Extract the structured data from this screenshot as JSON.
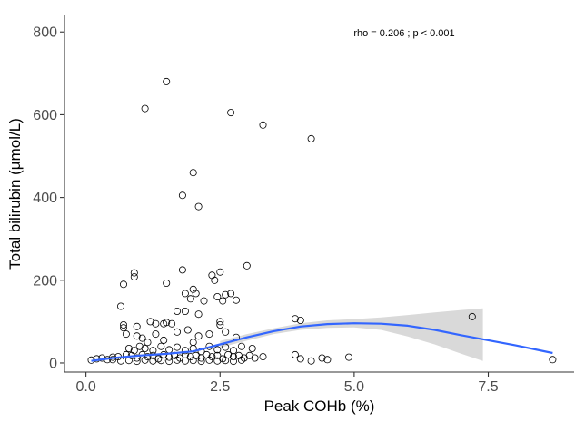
{
  "chart_data": {
    "type": "scatter",
    "xlabel": "Peak COHb (%)",
    "ylabel": "Total bilirubin (µmol/L)",
    "annotation": "rho = 0.206 ; p < 0.001",
    "xlim": [
      -0.4,
      9.1
    ],
    "ylim": [
      -22,
      840
    ],
    "x_ticks": [
      0,
      2.5,
      5,
      7.5
    ],
    "x_tick_labels": [
      "0.0",
      "2.5",
      "5.0",
      "7.5"
    ],
    "y_ticks": [
      0,
      200,
      400,
      600,
      800
    ],
    "y_tick_labels": [
      "0",
      "200",
      "400",
      "600",
      "800"
    ],
    "grid": false,
    "legend": "none",
    "point_style": "open-circle",
    "smooth_color": "#3366FF",
    "ribbon_color": "#d9d9d9",
    "points": [
      [
        1.5,
        680
      ],
      [
        1.1,
        615
      ],
      [
        2.7,
        605
      ],
      [
        3.3,
        575
      ],
      [
        4.2,
        542
      ],
      [
        2.0,
        460
      ],
      [
        1.8,
        405
      ],
      [
        2.1,
        378
      ],
      [
        3.0,
        235
      ],
      [
        0.9,
        218
      ],
      [
        0.9,
        208
      ],
      [
        1.8,
        225
      ],
      [
        2.5,
        220
      ],
      [
        2.35,
        212
      ],
      [
        2.4,
        200
      ],
      [
        0.7,
        190
      ],
      [
        1.5,
        193
      ],
      [
        2.6,
        165
      ],
      [
        2.7,
        168
      ],
      [
        2.45,
        160
      ],
      [
        2.2,
        150
      ],
      [
        2.55,
        150
      ],
      [
        2.8,
        152
      ],
      [
        2.0,
        178
      ],
      [
        1.85,
        168
      ],
      [
        2.05,
        168
      ],
      [
        1.95,
        155
      ],
      [
        0.65,
        137
      ],
      [
        1.7,
        125
      ],
      [
        1.85,
        125
      ],
      [
        2.1,
        118
      ],
      [
        0.7,
        92
      ],
      [
        0.7,
        85
      ],
      [
        0.95,
        88
      ],
      [
        1.2,
        100
      ],
      [
        1.3,
        95
      ],
      [
        1.45,
        95
      ],
      [
        1.6,
        95
      ],
      [
        1.5,
        98
      ],
      [
        2.5,
        100
      ],
      [
        2.5,
        92
      ],
      [
        3.9,
        107
      ],
      [
        4.0,
        103
      ],
      [
        7.2,
        112
      ],
      [
        0.75,
        70
      ],
      [
        0.95,
        65
      ],
      [
        1.05,
        60
      ],
      [
        1.3,
        70
      ],
      [
        1.7,
        75
      ],
      [
        1.9,
        80
      ],
      [
        2.1,
        65
      ],
      [
        2.3,
        70
      ],
      [
        2.6,
        75
      ],
      [
        2.8,
        62
      ],
      [
        1.15,
        50
      ],
      [
        1.45,
        55
      ],
      [
        2.0,
        50
      ],
      [
        0.8,
        35
      ],
      [
        0.9,
        30
      ],
      [
        1.0,
        40
      ],
      [
        1.1,
        35
      ],
      [
        1.25,
        30
      ],
      [
        1.4,
        40
      ],
      [
        1.55,
        32
      ],
      [
        1.7,
        38
      ],
      [
        1.85,
        30
      ],
      [
        2.0,
        35
      ],
      [
        2.15,
        28
      ],
      [
        2.3,
        40
      ],
      [
        2.45,
        32
      ],
      [
        2.6,
        38
      ],
      [
        2.75,
        30
      ],
      [
        2.9,
        40
      ],
      [
        3.1,
        35
      ],
      [
        0.6,
        15
      ],
      [
        0.75,
        20
      ],
      [
        0.85,
        18
      ],
      [
        0.95,
        12
      ],
      [
        1.05,
        20
      ],
      [
        1.15,
        15
      ],
      [
        1.25,
        18
      ],
      [
        1.35,
        10
      ],
      [
        1.45,
        20
      ],
      [
        1.55,
        14
      ],
      [
        1.65,
        18
      ],
      [
        1.75,
        12
      ],
      [
        1.85,
        20
      ],
      [
        1.95,
        15
      ],
      [
        2.05,
        18
      ],
      [
        2.15,
        12
      ],
      [
        2.25,
        20
      ],
      [
        2.35,
        15
      ],
      [
        2.45,
        18
      ],
      [
        2.55,
        10
      ],
      [
        2.65,
        20
      ],
      [
        2.75,
        15
      ],
      [
        2.85,
        18
      ],
      [
        2.95,
        12
      ],
      [
        3.05,
        18
      ],
      [
        3.15,
        12
      ],
      [
        3.3,
        15
      ],
      [
        0.5,
        8
      ],
      [
        0.65,
        5
      ],
      [
        0.8,
        6
      ],
      [
        0.95,
        4
      ],
      [
        1.1,
        7
      ],
      [
        1.25,
        5
      ],
      [
        1.4,
        6
      ],
      [
        1.55,
        4
      ],
      [
        1.7,
        7
      ],
      [
        1.85,
        5
      ],
      [
        2.0,
        6
      ],
      [
        2.15,
        4
      ],
      [
        2.3,
        7
      ],
      [
        2.45,
        5
      ],
      [
        2.6,
        6
      ],
      [
        2.75,
        4
      ],
      [
        2.9,
        7
      ],
      [
        0.1,
        7
      ],
      [
        0.2,
        10
      ],
      [
        0.3,
        12
      ],
      [
        0.4,
        8
      ],
      [
        0.5,
        14
      ],
      [
        3.9,
        20
      ],
      [
        4.0,
        10
      ],
      [
        4.2,
        5
      ],
      [
        4.4,
        12
      ],
      [
        4.5,
        8
      ],
      [
        4.9,
        14
      ],
      [
        8.7,
        8
      ]
    ],
    "smooth": {
      "x": [
        0.1,
        0.5,
        1.0,
        1.5,
        2.0,
        2.5,
        3.0,
        3.5,
        4.0,
        4.5,
        5.0,
        5.5,
        6.0,
        6.5,
        7.0,
        7.5,
        8.0,
        8.7
      ],
      "y": [
        5,
        12,
        18,
        22,
        28,
        45,
        62,
        77,
        88,
        94,
        96,
        95,
        90,
        80,
        67,
        55,
        43,
        24
      ]
    },
    "ribbon": {
      "x": [
        2.5,
        3.0,
        3.5,
        4.0,
        4.5,
        5.0,
        5.5,
        6.0,
        6.5,
        7.0,
        7.4
      ],
      "upper": [
        53,
        70,
        84,
        96,
        103,
        106,
        110,
        116,
        122,
        128,
        132
      ],
      "lower": [
        37,
        54,
        70,
        80,
        85,
        86,
        80,
        64,
        45,
        22,
        5
      ]
    }
  }
}
